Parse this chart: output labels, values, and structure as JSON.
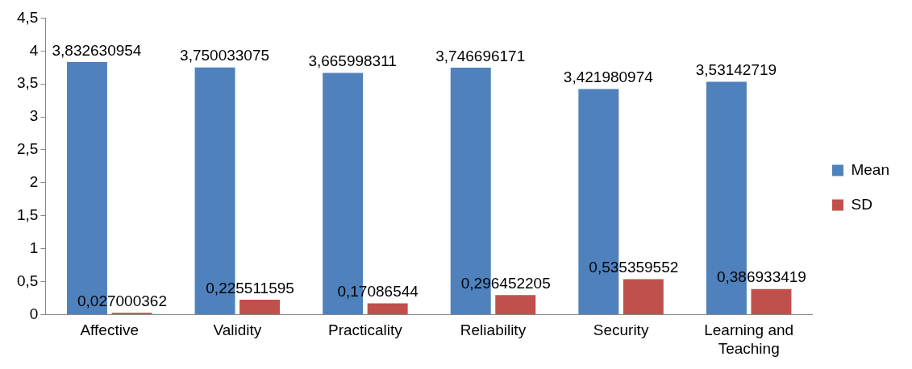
{
  "chart_data": {
    "type": "bar",
    "categories": [
      "Affective",
      "Validity",
      "Practicality",
      "Reliability",
      "Security",
      "Learning and Teaching"
    ],
    "series": [
      {
        "name": "Mean",
        "color": "#4f81bd",
        "values": [
          3.832630954,
          3.750033075,
          3.665998311,
          3.746696171,
          3.421980974,
          3.53142719
        ],
        "value_labels": [
          "3,832630954",
          "3,750033075",
          "3,665998311",
          "3,746696171",
          "3,421980974",
          "3,53142719"
        ]
      },
      {
        "name": "SD",
        "color": "#c0504d",
        "values": [
          0.027000362,
          0.225511595,
          0.17086544,
          0.296452205,
          0.535359552,
          0.386933419
        ],
        "value_labels": [
          "0,027000362",
          "0,225511595",
          "0,17086544",
          "0,296452205",
          "0,535359552",
          "0,386933419"
        ]
      }
    ],
    "ylim": [
      0,
      4.5
    ],
    "yticks": [
      0,
      {
        "value": 0.5,
        "label": "0,5"
      },
      1,
      {
        "value": 1.5,
        "label": "1,5"
      },
      2,
      {
        "value": 2.5,
        "label": "2,5"
      },
      3,
      {
        "value": 3.5,
        "label": "3,5"
      },
      4,
      {
        "value": 4.5,
        "label": "4,5"
      }
    ],
    "grid": false,
    "legend": "right"
  }
}
